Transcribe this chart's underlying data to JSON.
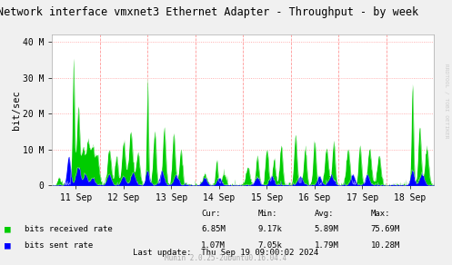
{
  "title": "Network interface vmxnet3 Ethernet Adapter - Throughput - by week",
  "ylabel": "bit/sec",
  "bg_color": "#F0F0F0",
  "plot_bg_color": "#FFFFFF",
  "grid_color": "#FF9999",
  "grid_vcolor": "#FF9999",
  "axis_color": "#AAAAAA",
  "x_labels": [
    "11 Sep",
    "12 Sep",
    "13 Sep",
    "14 Sep",
    "15 Sep",
    "16 Sep",
    "17 Sep",
    "18 Sep"
  ],
  "y_ticks": [
    0,
    10000000,
    20000000,
    30000000,
    40000000
  ],
  "y_labels": [
    "0",
    "10 M",
    "20 M",
    "30 M",
    "40 M"
  ],
  "ylim": [
    0,
    42000000
  ],
  "green_color": "#00CC00",
  "blue_color": "#0000FF",
  "legend_green": "bits received rate",
  "legend_blue": "bits sent rate",
  "cur_green": "6.85M",
  "cur_blue": "1.07M",
  "min_green": "9.17k",
  "min_blue": "7.05k",
  "avg_green": "5.89M",
  "avg_blue": "1.79M",
  "max_green": "75.69M",
  "max_blue": "10.28M",
  "last_update": "Last update:  Thu Sep 19 09:00:02 2024",
  "munin_version": "Munin 2.0.25-2ubuntu0.16.04.4",
  "rrdtool_label": "RRDTOOL / TOBI OETIKER"
}
